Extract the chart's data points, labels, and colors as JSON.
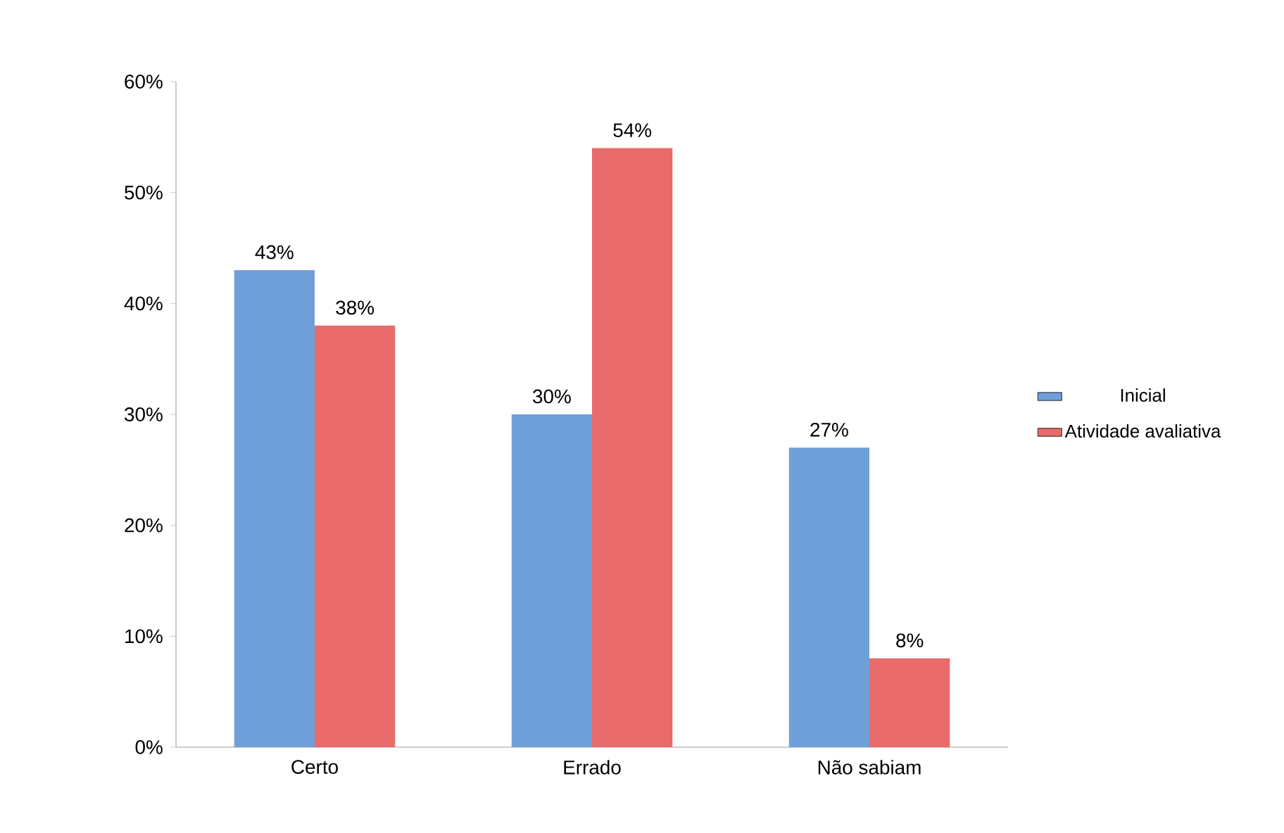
{
  "chart_data": {
    "type": "bar",
    "categories": [
      "Certo",
      "Errado",
      "Não sabiam"
    ],
    "series": [
      {
        "name": "Inicial",
        "color": "#6f9fd8",
        "values": [
          43,
          30,
          27
        ],
        "value_labels": [
          "43%",
          "30%",
          "27%"
        ]
      },
      {
        "name": "Atividade avaliativa",
        "color": "#e86a6a",
        "values": [
          38,
          54,
          8
        ],
        "value_labels": [
          "38%",
          "54%",
          "8%"
        ]
      }
    ],
    "ylim": [
      0,
      60
    ],
    "yticks": [
      {
        "value": 0,
        "label": "0%"
      },
      {
        "value": 10,
        "label": "10%"
      },
      {
        "value": 20,
        "label": "20%"
      },
      {
        "value": 30,
        "label": "30%"
      },
      {
        "value": 40,
        "label": "40%"
      },
      {
        "value": 50,
        "label": "50%"
      },
      {
        "value": 60,
        "label": "60%"
      }
    ],
    "legend": "right"
  }
}
